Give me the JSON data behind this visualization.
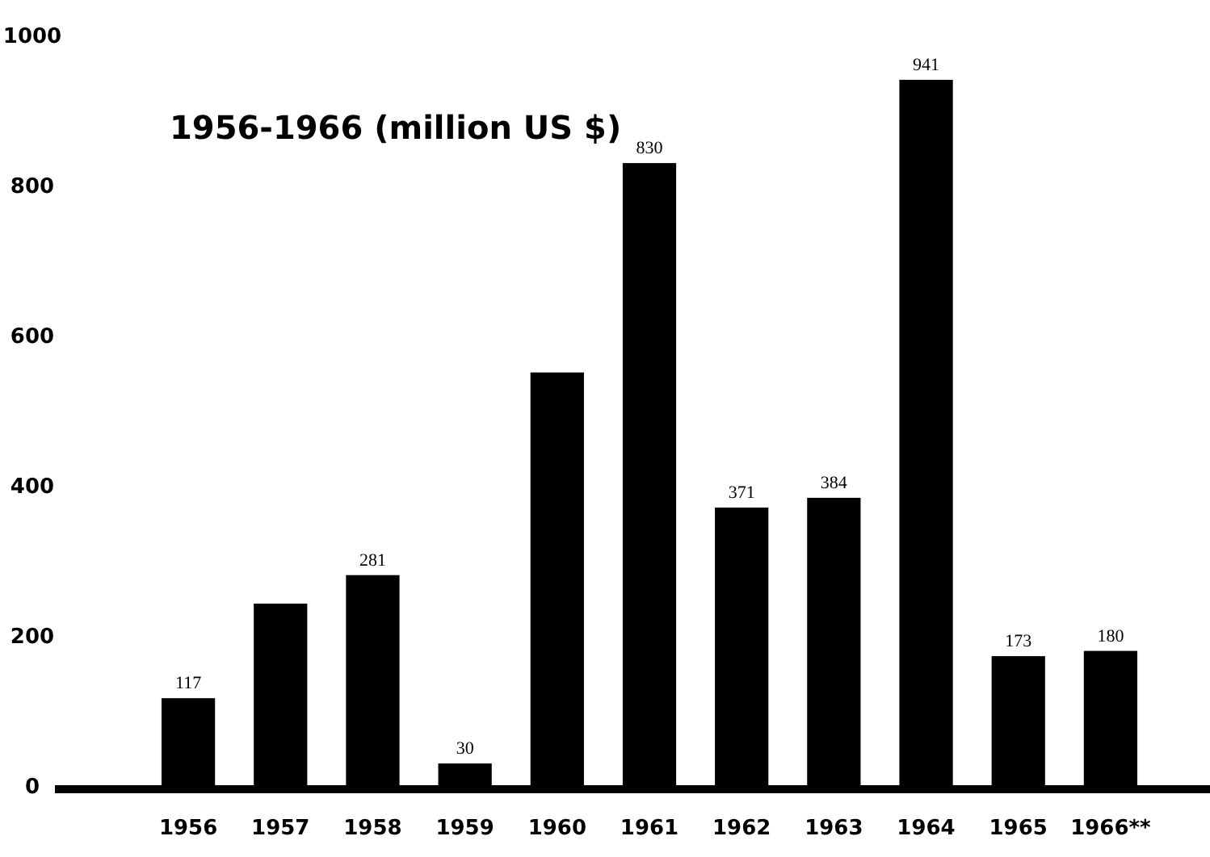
{
  "chart_data": {
    "type": "bar",
    "title": "1956-1966 (million US $)",
    "categories": [
      "1956",
      "1957",
      "1958",
      "1959",
      "1960",
      "1961",
      "1962",
      "1963",
      "1964",
      "1965",
      "1966**"
    ],
    "values": [
      117,
      243,
      281,
      30,
      551,
      830,
      371,
      384,
      941,
      173,
      180
    ],
    "value_labels": [
      "117",
      null,
      "281",
      "30",
      null,
      "830",
      "371",
      "384",
      "941",
      "173",
      "180"
    ],
    "color": "#000000",
    "ylim": [
      0,
      1000
    ],
    "yticks": [
      0,
      200,
      400,
      600,
      800,
      1000
    ],
    "grid": false
  }
}
